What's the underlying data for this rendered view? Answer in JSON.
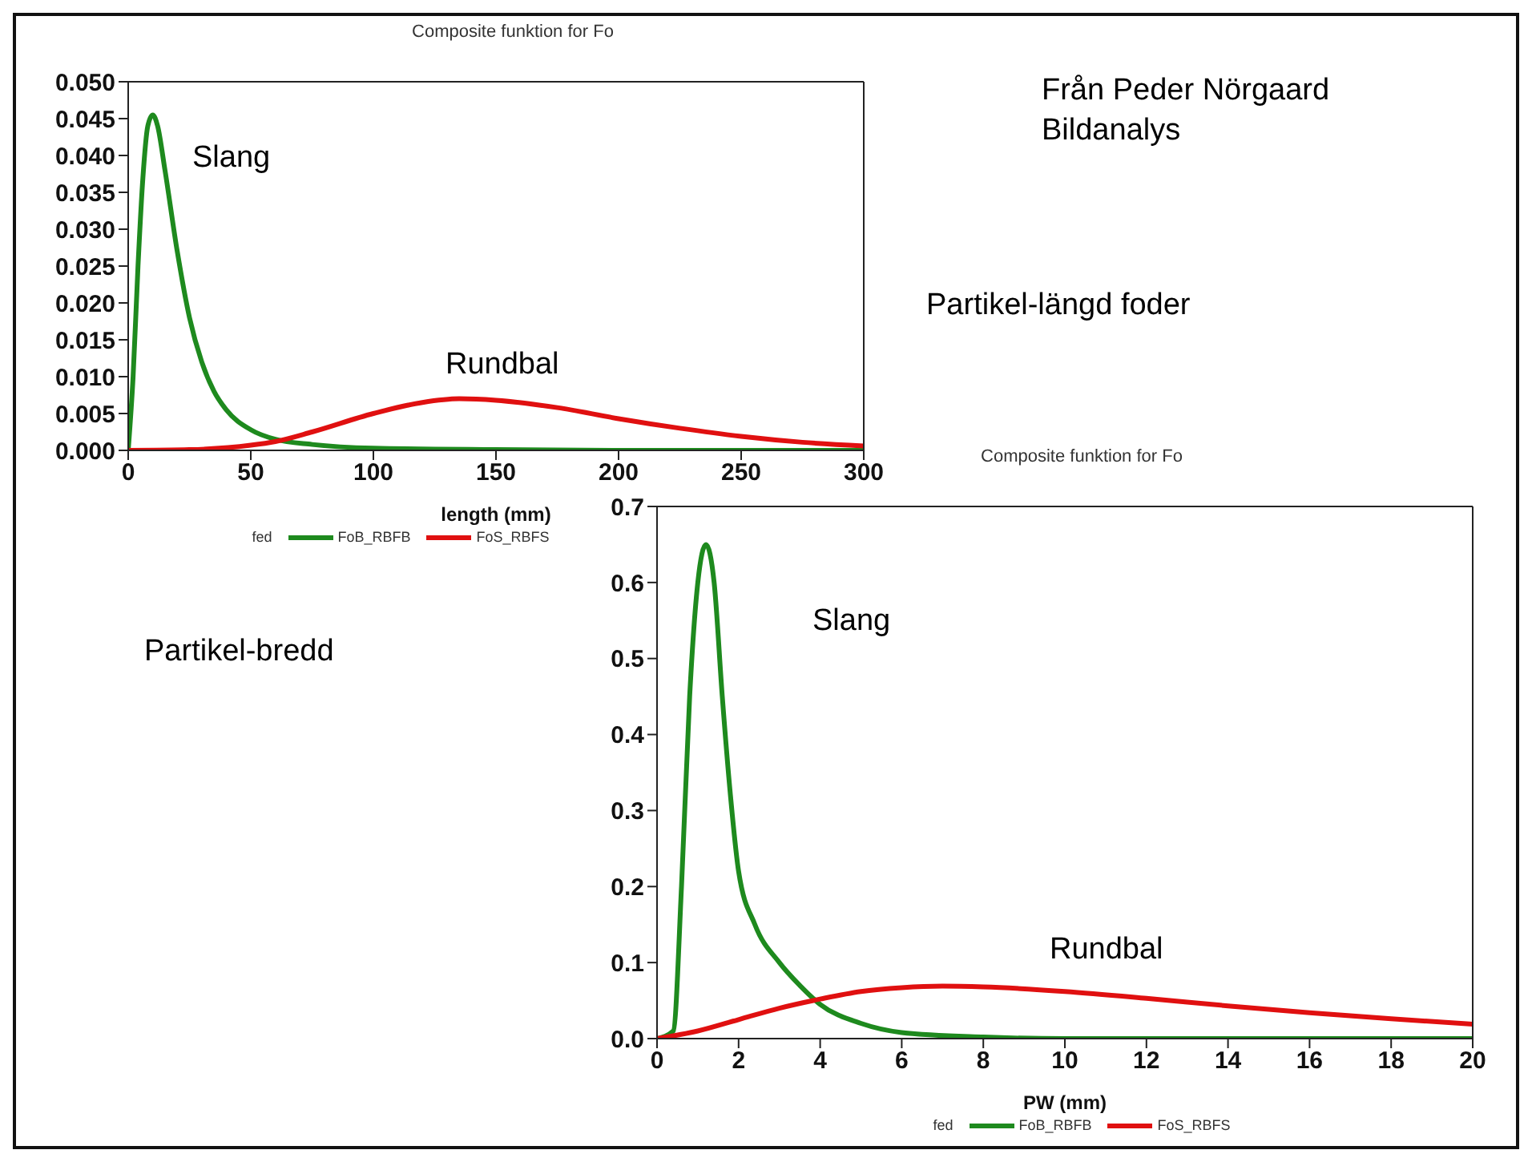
{
  "chart_data": [
    {
      "type": "line",
      "title": "Composite funktion for Fo",
      "xlabel": "length (mm)",
      "legend_title": "fed",
      "legend": "bottom",
      "xlim": [
        0,
        300
      ],
      "xticks": [
        0,
        50,
        100,
        150,
        200,
        250,
        300
      ],
      "ylim": [
        0,
        0.05
      ],
      "yticks": [
        {
          "value": 0,
          "label": "0.000"
        },
        {
          "value": 0.005,
          "label": "0.005"
        },
        {
          "value": 0.01,
          "label": "0.010"
        },
        {
          "value": 0.015,
          "label": "0.015"
        },
        {
          "value": 0.02,
          "label": "0.020"
        },
        {
          "value": 0.025,
          "label": "0.025"
        },
        {
          "value": 0.03,
          "label": "0.030"
        },
        {
          "value": 0.035,
          "label": "0.035"
        },
        {
          "value": 0.04,
          "label": "0.040"
        },
        {
          "value": 0.045,
          "label": "0.045"
        },
        {
          "value": 0.05,
          "label": "0.050"
        }
      ],
      "marker": "none",
      "line_style": "solid",
      "series": [
        {
          "name": "FoB_RBFB",
          "color": "#1e8a1e",
          "x": [
            0,
            2,
            4,
            6,
            8,
            10,
            12,
            15,
            20,
            25,
            30,
            35,
            40,
            50,
            60,
            75,
            100,
            150,
            200,
            300
          ],
          "values": [
            0,
            0.01,
            0.025,
            0.037,
            0.044,
            0.0455,
            0.044,
            0.038,
            0.027,
            0.018,
            0.012,
            0.008,
            0.0055,
            0.0028,
            0.0015,
            0.0008,
            0.0003,
            0.0001,
            0,
            0
          ]
        },
        {
          "name": "FoS_RBFS",
          "color": "#e01010",
          "x": [
            0,
            25,
            50,
            60,
            75,
            100,
            120,
            135,
            150,
            175,
            200,
            225,
            250,
            275,
            300
          ],
          "values": [
            0,
            0.0001,
            0.0007,
            0.0012,
            0.0025,
            0.005,
            0.0065,
            0.007,
            0.0068,
            0.0058,
            0.0043,
            0.003,
            0.0019,
            0.0011,
            0.0006
          ]
        }
      ],
      "annotations": [
        "Slang",
        "Rundbal",
        "Från Peder Nörgaard Bildanalys",
        "Partikel-längd foder"
      ]
    },
    {
      "type": "line",
      "title": "Composite funktion for Fo",
      "xlabel": "PW (mm)",
      "legend_title": "fed",
      "legend": "bottom",
      "xlim": [
        0,
        20
      ],
      "xticks": [
        0,
        2,
        4,
        6,
        8,
        10,
        12,
        14,
        16,
        18,
        20
      ],
      "ylim": [
        0,
        0.7
      ],
      "yticks": [
        {
          "value": 0,
          "label": "0.0"
        },
        {
          "value": 0.1,
          "label": "0.1"
        },
        {
          "value": 0.2,
          "label": "0.2"
        },
        {
          "value": 0.3,
          "label": "0.3"
        },
        {
          "value": 0.4,
          "label": "0.4"
        },
        {
          "value": 0.5,
          "label": "0.5"
        },
        {
          "value": 0.6,
          "label": "0.6"
        },
        {
          "value": 0.7,
          "label": "0.7"
        }
      ],
      "marker": "none",
      "line_style": "solid",
      "series": [
        {
          "name": "FoB_RBFB",
          "color": "#1e8a1e",
          "x": [
            0,
            0.4,
            0.6,
            0.8,
            1.0,
            1.2,
            1.4,
            1.6,
            1.8,
            2.0,
            2.4,
            3,
            3.5,
            4,
            5,
            6,
            8,
            10,
            20
          ],
          "values": [
            0,
            0.01,
            0.2,
            0.45,
            0.6,
            0.65,
            0.6,
            0.45,
            0.32,
            0.22,
            0.15,
            0.1,
            0.07,
            0.045,
            0.02,
            0.008,
            0.002,
            0,
            0
          ]
        },
        {
          "name": "FoS_RBFS",
          "color": "#e01010",
          "x": [
            0,
            1,
            2,
            3,
            4,
            5,
            6,
            7,
            8,
            10,
            12,
            14,
            16,
            18,
            20
          ],
          "values": [
            0,
            0.01,
            0.025,
            0.04,
            0.052,
            0.062,
            0.067,
            0.069,
            0.068,
            0.062,
            0.053,
            0.043,
            0.034,
            0.026,
            0.019
          ]
        }
      ],
      "annotations": [
        "Slang",
        "Rundbal",
        "Partikel-bredd"
      ]
    }
  ]
}
